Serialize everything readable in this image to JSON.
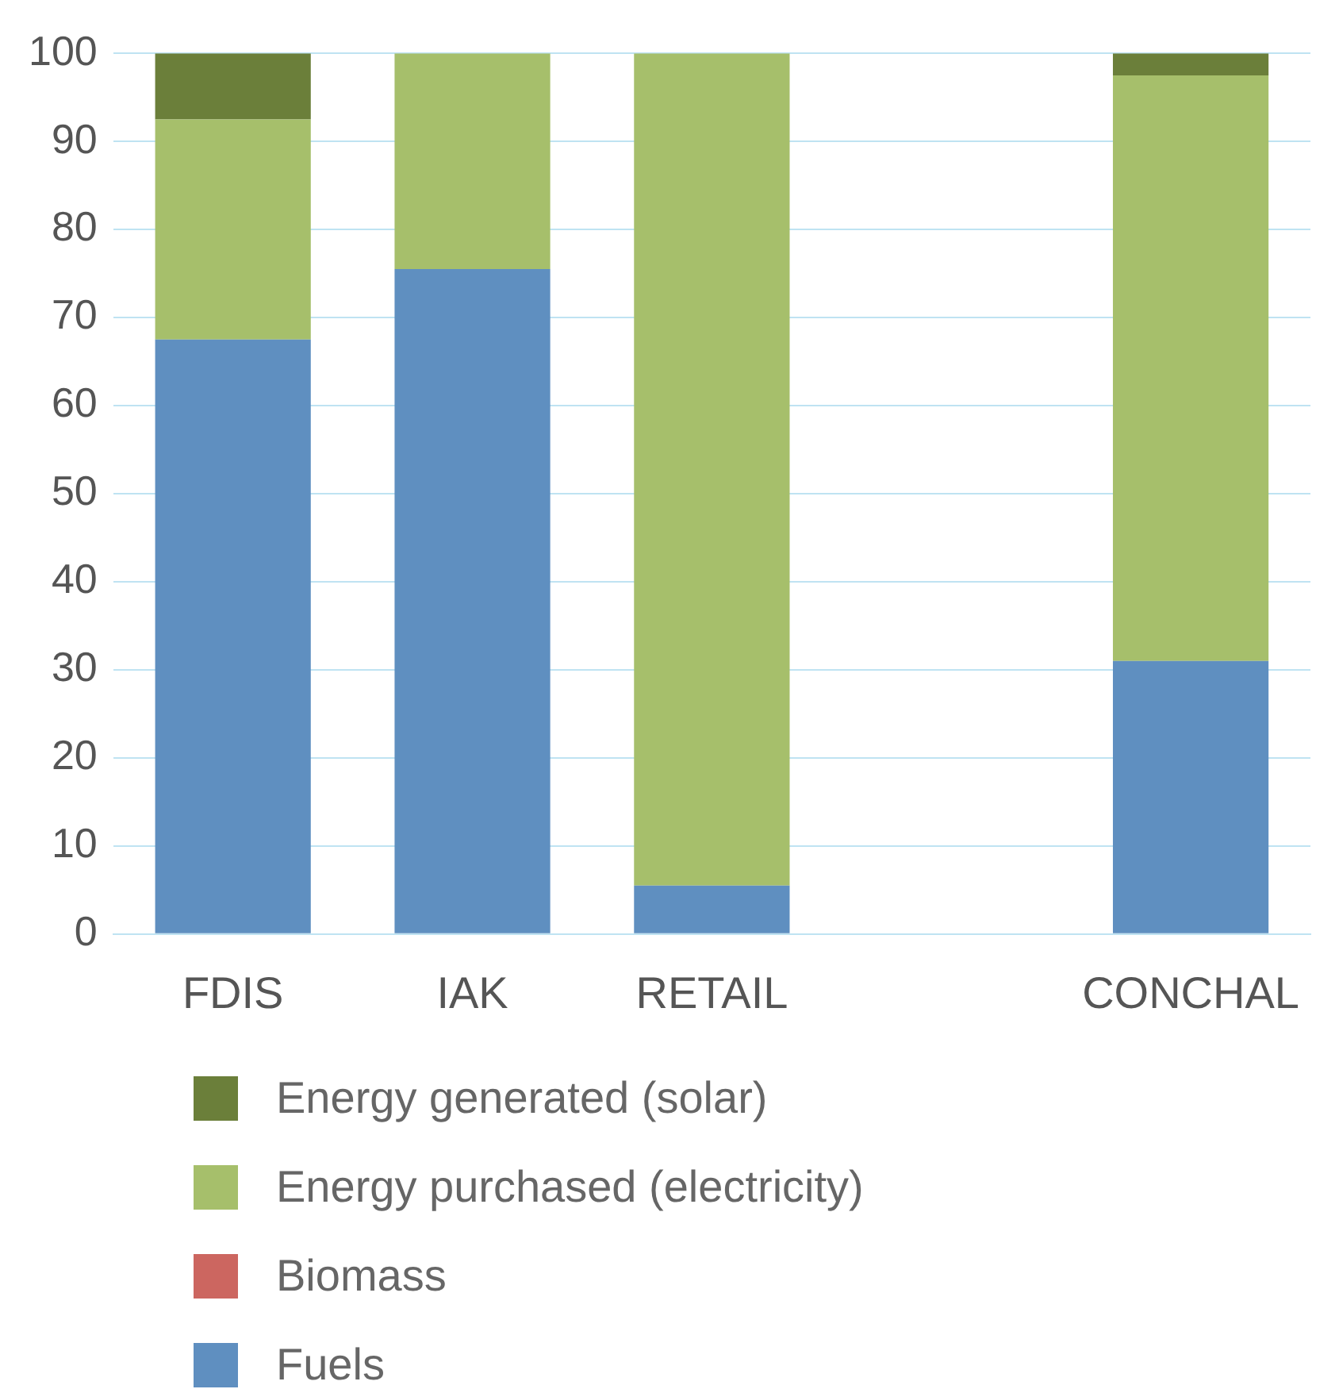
{
  "chart_data": {
    "type": "bar",
    "stacked": true,
    "categories": [
      "FDIS",
      "IAK",
      "RETAIL",
      null,
      "CONCHAL"
    ],
    "series": [
      {
        "name": "Fuels",
        "color": "#5f8fc0",
        "values": [
          67.5,
          75.5,
          5.5,
          null,
          31
        ]
      },
      {
        "name": "Biomass",
        "color": "#cc6660",
        "values": [
          0,
          0,
          0,
          null,
          0
        ]
      },
      {
        "name": "Energy purchased (electricity)",
        "color": "#a6bf6b",
        "values": [
          25,
          24.5,
          94.5,
          null,
          66.5
        ]
      },
      {
        "name": "Energy generated (solar)",
        "color": "#6b7f3a",
        "values": [
          7.5,
          0,
          0,
          null,
          2.5
        ]
      }
    ],
    "ylim": [
      0,
      100
    ],
    "yticks": [
      0,
      10,
      20,
      30,
      40,
      50,
      60,
      70,
      80,
      90,
      100
    ],
    "grid": "y",
    "legend": "bottom"
  }
}
